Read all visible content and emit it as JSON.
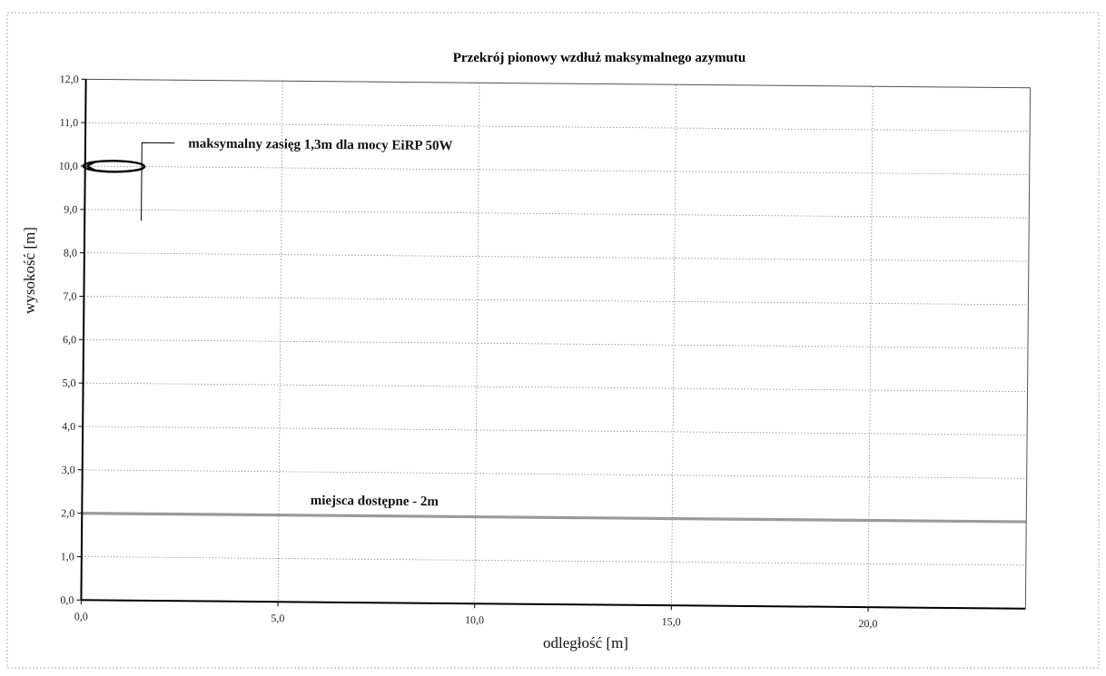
{
  "chart_data": {
    "type": "line",
    "title": "Przekrój pionowy wzdłuż maksymalnego azymutu",
    "xlabel": "odległość [m]",
    "ylabel": "wysokość  [m]",
    "xlim": [
      0,
      24
    ],
    "ylim": [
      0,
      12
    ],
    "x_ticks": [
      "0,0",
      "5,0",
      "10,0",
      "15,0",
      "20,0"
    ],
    "y_ticks": [
      "0,0",
      "1,0",
      "2,0",
      "3,0",
      "4,0",
      "5,0",
      "6,0",
      "7,0",
      "8,0",
      "9,0",
      "10,0",
      "11,0",
      "12,0"
    ],
    "grid": true,
    "series": [
      {
        "values_x": [
          0,
          24
        ],
        "values_y": [
          2.0,
          2.0
        ],
        "color": "#9a9a9a"
      }
    ],
    "annotations": [
      {
        "text": "maksymalny zasięg 1,3m dla mocy EiRP 50W",
        "x": 1.3,
        "y": 10.0
      },
      {
        "text": "miejsca dostępne - 2m",
        "x": 5.8,
        "y": 2.0
      }
    ],
    "colors": {
      "axis": "#000000",
      "grid": "#8a8a8a",
      "border": "#aaaaaa"
    }
  }
}
